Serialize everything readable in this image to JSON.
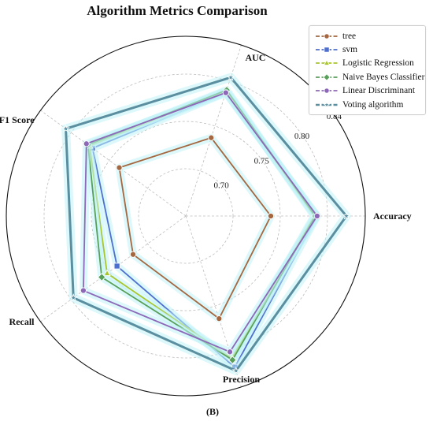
{
  "chart_data": {
    "type": "radar",
    "title": "Algorithm Metrics Comparison",
    "panel_label": "(B)",
    "axes": [
      "Accuracy",
      "Precision",
      "Recall",
      "F1 Score",
      "AUC"
    ],
    "rlim": [
      0.65,
      0.84
    ],
    "tick_values": [
      0.7,
      0.75,
      0.8,
      0.84
    ],
    "tick_labels": [
      "0.70",
      "0.75",
      "0.80",
      "0.84"
    ],
    "grid": true,
    "legend_position": "top-right",
    "series": [
      {
        "name": "tree",
        "color": "#a5673f",
        "marker": "circle",
        "linewidth": 1.8,
        "values": [
          0.74,
          0.764,
          0.719,
          0.737,
          0.737
        ]
      },
      {
        "name": "svm",
        "color": "#4f6fcf",
        "marker": "square",
        "linewidth": 1.8,
        "values": [
          0.789,
          0.818,
          0.74,
          0.772,
          0.787
        ]
      },
      {
        "name": "Logistic Regression",
        "color": "#a9c62d",
        "marker": "triangle",
        "linewidth": 1.8,
        "values": [
          0.786,
          0.808,
          0.753,
          0.776,
          0.789
        ]
      },
      {
        "name": "Naive Bayes Classifier",
        "color": "#58a05a",
        "marker": "diamond",
        "linewidth": 1.8,
        "values": [
          0.787,
          0.81,
          0.76,
          0.778,
          0.79
        ]
      },
      {
        "name": "Linear Discriminant",
        "color": "#8d68b8",
        "marker": "circle",
        "linewidth": 1.8,
        "values": [
          0.789,
          0.801,
          0.784,
          0.78,
          0.787
        ]
      },
      {
        "name": "Voting algorithm",
        "color": "#5b8fa0",
        "marker": "star",
        "linewidth": 3,
        "values": [
          0.82,
          0.822,
          0.797,
          0.807,
          0.804
        ]
      }
    ]
  }
}
